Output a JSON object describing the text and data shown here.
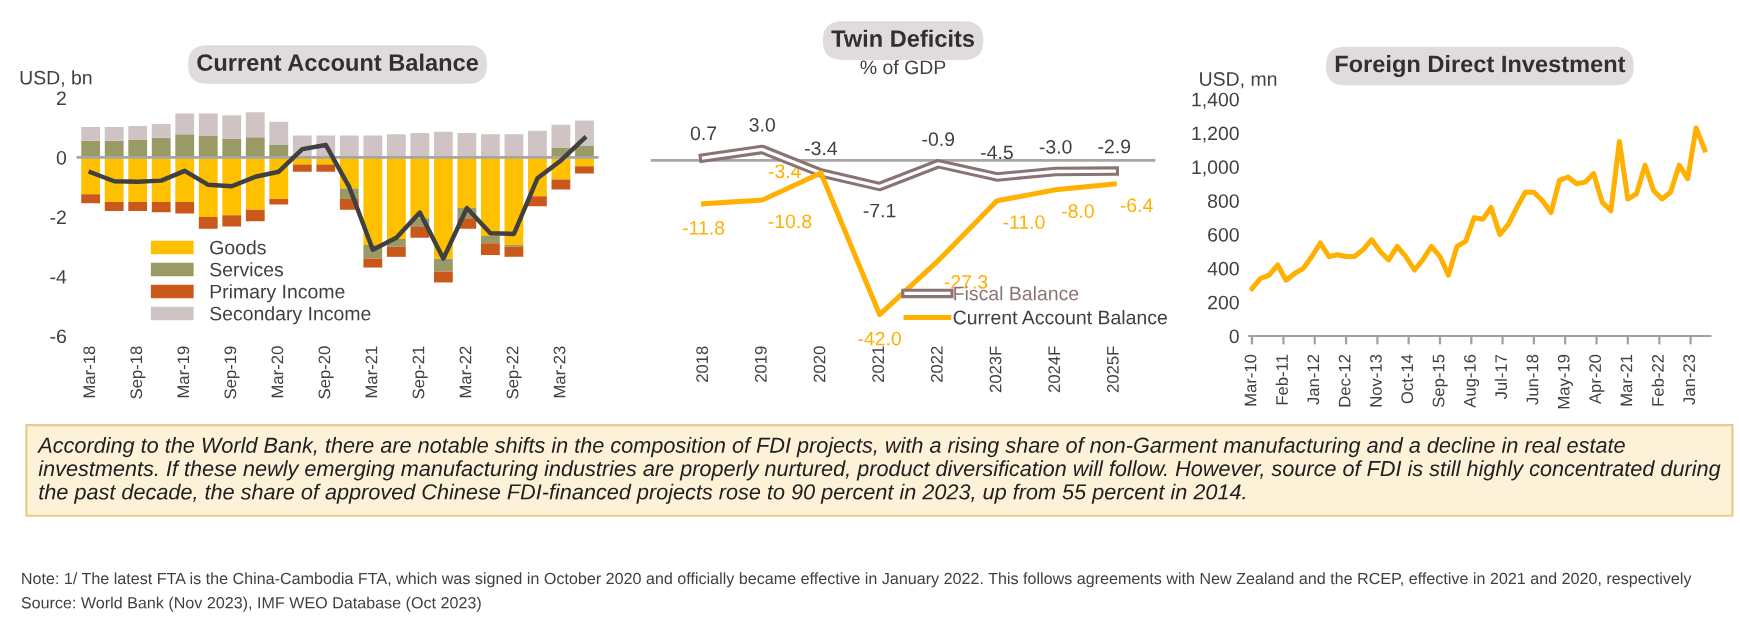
{
  "chart_data": [
    {
      "type": "bar",
      "stacked": true,
      "title": "Current Account Balance",
      "ylabel": "USD, bn",
      "categories": [
        "Mar-18",
        null,
        "Sep-18",
        null,
        "Mar-19",
        null,
        "Sep-19",
        null,
        "Mar-20",
        null,
        "Sep-20",
        null,
        "Mar-21",
        null,
        "Sep-21",
        null,
        "Mar-22",
        null,
        "Sep-22",
        null,
        "Mar-23",
        null
      ],
      "series": [
        {
          "name": "Goods",
          "color": "#ffc000",
          "values": [
            -1.24,
            -1.5,
            -1.5,
            -1.5,
            -1.5,
            -2.0,
            -1.94,
            -1.76,
            -1.4,
            -0.24,
            -0.24,
            -1.04,
            -2.94,
            -2.74,
            -2.04,
            -3.4,
            -1.7,
            -2.64,
            -2.94,
            -1.3,
            -0.74,
            -0.3
          ]
        },
        {
          "name": "Services",
          "color": "#9a9a66",
          "values": [
            0.56,
            0.56,
            0.6,
            0.66,
            0.78,
            0.72,
            0.64,
            0.68,
            0.42,
            0.04,
            null,
            -0.36,
            -0.46,
            -0.26,
            -0.3,
            -0.44,
            -0.34,
            -0.24,
            -0.06,
            null,
            0.32,
            0.4
          ]
        },
        {
          "name": "Primary Income",
          "color": "#c9581a",
          "values": [
            -0.3,
            -0.3,
            -0.3,
            -0.34,
            -0.38,
            -0.4,
            -0.38,
            -0.38,
            -0.18,
            -0.24,
            -0.24,
            -0.36,
            -0.3,
            -0.34,
            -0.36,
            -0.36,
            -0.36,
            -0.4,
            -0.34,
            -0.34,
            -0.34,
            -0.24
          ]
        },
        {
          "name": "Secondary Income",
          "color": "#cfc3c3",
          "values": [
            0.46,
            0.46,
            0.46,
            0.46,
            0.7,
            0.76,
            0.78,
            0.84,
            0.78,
            0.7,
            0.74,
            0.74,
            0.74,
            0.78,
            0.82,
            0.86,
            0.82,
            0.78,
            0.78,
            0.9,
            0.78,
            0.84
          ]
        },
        {
          "type": "line",
          "color": "#404040",
          "values": [
            -0.5,
            -0.8,
            -0.82,
            -0.78,
            -0.45,
            -0.92,
            -0.97,
            -0.65,
            -0.48,
            0.28,
            0.42,
            -1.0,
            -3.1,
            -2.7,
            -1.85,
            -3.4,
            -1.7,
            -2.55,
            -2.57,
            -0.7,
            -0.1,
            0.65
          ]
        }
      ],
      "ylim": [
        -6,
        2
      ],
      "yticks": [
        -6,
        -4,
        -2,
        0,
        2
      ],
      "legend": "bottom left",
      "grid": false,
      "ref_lines": [
        {
          "axis": "y",
          "value": 0,
          "color": "#a6a6a6"
        }
      ]
    },
    {
      "type": "line",
      "title": "Twin Deficits",
      "subtitle": "% of GDP",
      "categories": [
        "2018",
        "2019",
        "2020",
        "2021",
        "2022",
        "2023F",
        "2024F",
        "2025F"
      ],
      "series": [
        {
          "name": "Fiscal Balance",
          "color": "#8c7373",
          "values": [
            0.7,
            3.0,
            -3.4,
            -7.1,
            -0.9,
            -4.5,
            -3.0,
            -2.9
          ],
          "value_labels": [
            "0.7",
            "3.0",
            "-3.4",
            "-7.1",
            "-0.9",
            "-4.5",
            "-3.0",
            "-2.9"
          ]
        },
        {
          "name": "Current Account Balance",
          "color": "#ffb000",
          "values": [
            -11.8,
            -10.8,
            -3.4,
            -42.0,
            -27.3,
            -11.0,
            -8.0,
            -6.4
          ],
          "value_labels": [
            "-11.8",
            "-10.8",
            "-3.4",
            "-42.0",
            "-27.3",
            "-11.0",
            "-8.0",
            "-6.4"
          ]
        }
      ],
      "tick_labels": "x",
      "legend": "bottom right",
      "grid": false,
      "ref_lines": [
        {
          "axis": "y",
          "value": 0,
          "color": "#a6a6a6"
        }
      ]
    },
    {
      "type": "line",
      "title": "Foreign Direct Investment",
      "ylabel": "USD, mn",
      "x": [
        "2010-03",
        "2010-06",
        "2010-09",
        "2010-12",
        "2011-03",
        "2011-06",
        "2011-09",
        "2011-12",
        "2012-03",
        "2012-06",
        "2012-09",
        "2012-12",
        "2013-03",
        "2013-06",
        "2013-09",
        "2013-12",
        "2014-03",
        "2014-06",
        "2014-09",
        "2014-12",
        "2015-03",
        "2015-06",
        "2015-09",
        "2015-12",
        "2016-03",
        "2016-06",
        "2016-09",
        "2016-12",
        "2017-03",
        "2017-06",
        "2017-09",
        "2017-12",
        "2018-03",
        "2018-06",
        "2018-09",
        "2018-12",
        "2019-03",
        "2019-06",
        "2019-09",
        "2019-12",
        "2020-03",
        "2020-06",
        "2020-09",
        "2020-12",
        "2021-03",
        "2021-06",
        "2021-09",
        "2021-12",
        "2022-03",
        "2022-06",
        "2022-09",
        "2022-12",
        "2023-03",
        "2023-06"
      ],
      "series": [
        {
          "color": "#ffb000",
          "values": [
            280,
            340,
            360,
            420,
            330,
            370,
            400,
            470,
            550,
            470,
            480,
            470,
            470,
            510,
            570,
            500,
            450,
            530,
            470,
            390,
            450,
            530,
            470,
            360,
            530,
            560,
            700,
            690,
            760,
            600,
            660,
            760,
            850,
            850,
            800,
            730,
            920,
            940,
            900,
            910,
            960,
            790,
            740,
            1150,
            810,
            840,
            1010,
            860,
            810,
            850,
            1010,
            930,
            1230,
            1100
          ]
        }
      ],
      "xlim": [
        "2010-02",
        "2023-08"
      ],
      "xticks": [
        {
          "value": "2010-03",
          "label": "Mar-10"
        },
        {
          "value": "2011-02",
          "label": "Feb-11"
        },
        {
          "value": "2012-01",
          "label": "Jan-12"
        },
        {
          "value": "2012-12",
          "label": "Dec-12"
        },
        {
          "value": "2013-11",
          "label": "Nov-13"
        },
        {
          "value": "2014-10",
          "label": "Oct-14"
        },
        {
          "value": "2015-09",
          "label": "Sep-15"
        },
        {
          "value": "2016-08",
          "label": "Aug-16"
        },
        {
          "value": "2017-07",
          "label": "Jul-17"
        },
        {
          "value": "2018-06",
          "label": "Jun-18"
        },
        {
          "value": "2019-05",
          "label": "May-19"
        },
        {
          "value": "2020-04",
          "label": "Apr-20"
        },
        {
          "value": "2021-03",
          "label": "Mar-21"
        },
        {
          "value": "2022-02",
          "label": "Feb-22"
        },
        {
          "value": "2023-01",
          "label": "Jan-23"
        }
      ],
      "ylim": [
        0,
        1400
      ],
      "yticks": [
        0,
        200,
        400,
        600,
        800,
        {
          "value": 1000,
          "label": "1,000"
        },
        {
          "value": 1200,
          "label": "1,200"
        },
        {
          "value": 1400,
          "label": "1,400"
        }
      ],
      "grid": false
    },
    {
      "type": "other",
      "annotations": [
        "According to the World Bank, there are notable shifts in the composition of FDI projects, with a rising share of non-Garment manufacturing and a decline in real estate investments. If these newly emerging manufacturing industries are properly nurtured, product diversification will follow. However, source of FDI is still highly concentrated during the past decade, the share of approved Chinese FDI-financed projects rose to 90 percent in 2023, up from 55 percent in 2014.",
        "Note: 1/ The latest FTA is the China-Cambodia FTA, which was signed in October 2020 and officially became effective in January 2022. This follows agreements with New Zealand and the RCEP, effective in 2021 and 2020, respectively",
        "Source: World Bank (Nov 2023), IMF WEO Database (Oct 2023)"
      ]
    }
  ]
}
